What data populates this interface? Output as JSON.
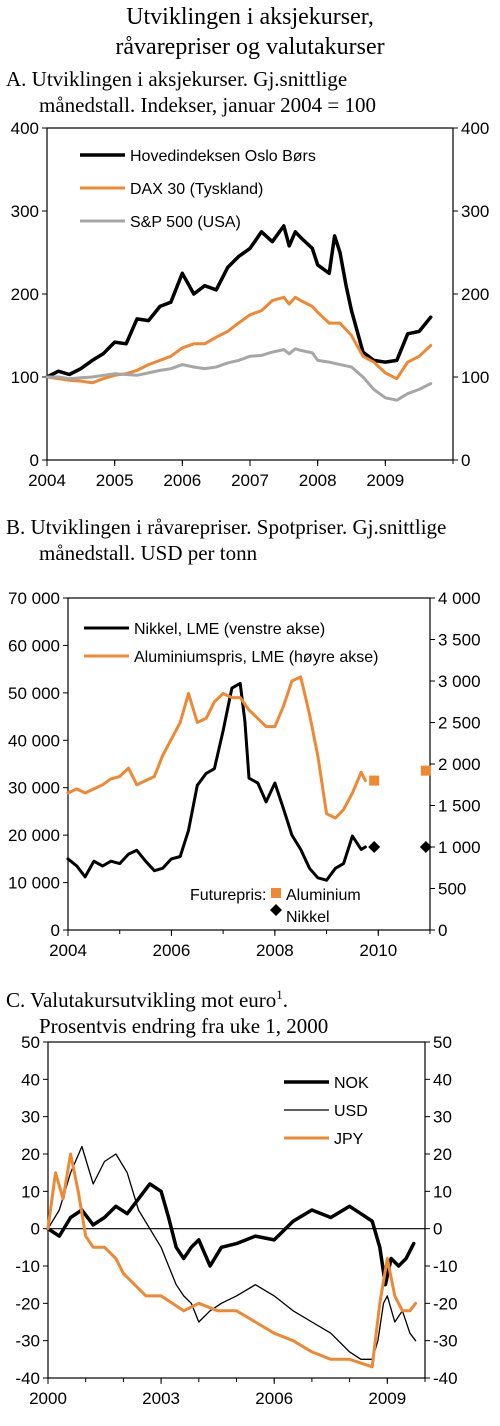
{
  "page": {
    "title_line1": "Utviklingen i aksjekurser,",
    "title_line2": "råvarepriser og valutakurser"
  },
  "chart_data": [
    {
      "type": "line",
      "title": "A. Utviklingen i aksjekurser. Gj.snittlige månedstall. Indekser, januar 2004 = 100",
      "title_line1": "A.  Utviklingen i aksjekurser. Gj.snittlige",
      "title_line2": "månedstall. Indekser, januar 2004 = 100",
      "xlim": [
        2004,
        2010
      ],
      "x_ticks": [
        2004,
        2005,
        2006,
        2007,
        2008,
        2009
      ],
      "ylim_left": [
        0,
        400
      ],
      "ylim_right": [
        0,
        400
      ],
      "y_ticks_left": [
        0,
        100,
        200,
        300,
        400
      ],
      "y_ticks_right": [
        0,
        100,
        200,
        300,
        400
      ],
      "grid": false,
      "legend_placement": "top-left",
      "series": [
        {
          "name": "Hovedindeksen Oslo Børs",
          "color": "#000000",
          "width": 3.5,
          "axis": "left",
          "x": [
            2004.0,
            2004.17,
            2004.33,
            2004.5,
            2004.67,
            2004.83,
            2005.0,
            2005.17,
            2005.33,
            2005.5,
            2005.67,
            2005.83,
            2006.0,
            2006.17,
            2006.33,
            2006.5,
            2006.67,
            2006.83,
            2007.0,
            2007.17,
            2007.33,
            2007.5,
            2007.58,
            2007.67,
            2007.75,
            2007.92,
            2008.0,
            2008.17,
            2008.25,
            2008.33,
            2008.42,
            2008.5,
            2008.67,
            2008.83,
            2009.0,
            2009.17,
            2009.33,
            2009.5,
            2009.67
          ],
          "y": [
            100,
            107,
            103,
            110,
            120,
            128,
            142,
            140,
            170,
            168,
            185,
            190,
            225,
            200,
            210,
            205,
            232,
            245,
            255,
            275,
            263,
            282,
            258,
            275,
            268,
            255,
            235,
            225,
            270,
            250,
            210,
            180,
            130,
            120,
            118,
            120,
            152,
            155,
            172
          ]
        },
        {
          "name": "DAX 30 (Tyskland)",
          "color": "#ee8833",
          "width": 3,
          "axis": "left",
          "x": [
            2004.0,
            2004.17,
            2004.33,
            2004.5,
            2004.67,
            2004.83,
            2005.0,
            2005.17,
            2005.33,
            2005.5,
            2005.67,
            2005.83,
            2006.0,
            2006.17,
            2006.33,
            2006.5,
            2006.67,
            2006.83,
            2007.0,
            2007.17,
            2007.33,
            2007.5,
            2007.58,
            2007.67,
            2007.75,
            2007.92,
            2008.0,
            2008.17,
            2008.33,
            2008.5,
            2008.67,
            2008.83,
            2009.0,
            2009.17,
            2009.33,
            2009.5,
            2009.67
          ],
          "y": [
            100,
            98,
            96,
            95,
            93,
            98,
            102,
            104,
            108,
            115,
            120,
            125,
            135,
            140,
            140,
            148,
            155,
            165,
            175,
            180,
            192,
            196,
            188,
            196,
            192,
            185,
            178,
            165,
            165,
            150,
            125,
            118,
            105,
            98,
            118,
            125,
            138
          ]
        },
        {
          "name": "S&P 500 (USA)",
          "color": "#a6a6a6",
          "width": 3,
          "axis": "left",
          "x": [
            2004.0,
            2004.17,
            2004.33,
            2004.5,
            2004.67,
            2004.83,
            2005.0,
            2005.17,
            2005.33,
            2005.5,
            2005.67,
            2005.83,
            2006.0,
            2006.17,
            2006.33,
            2006.5,
            2006.67,
            2006.83,
            2007.0,
            2007.17,
            2007.33,
            2007.5,
            2007.58,
            2007.67,
            2007.75,
            2007.92,
            2008.0,
            2008.17,
            2008.33,
            2008.5,
            2008.67,
            2008.83,
            2009.0,
            2009.17,
            2009.33,
            2009.5,
            2009.67
          ],
          "y": [
            100,
            100,
            98,
            99,
            100,
            102,
            104,
            103,
            102,
            105,
            108,
            110,
            115,
            112,
            110,
            112,
            117,
            120,
            125,
            126,
            130,
            133,
            128,
            134,
            132,
            129,
            120,
            118,
            115,
            112,
            100,
            85,
            75,
            72,
            80,
            85,
            92
          ]
        }
      ]
    },
    {
      "type": "line",
      "title": "B. Utviklingen i råvarepriser. Spotpriser. Gj.snittlige månedstall. USD per tonn",
      "title_line1": "B.  Utviklingen i råvarepriser. Spotpriser. Gj.snittlige",
      "title_line2": "månedstall. USD per tonn",
      "xlim": [
        2004,
        2011
      ],
      "x_ticks": [
        2004,
        2006,
        2008,
        2010
      ],
      "ylim_left": [
        0,
        70000
      ],
      "ylim_right": [
        0,
        4000
      ],
      "y_ticks_left": [
        0,
        10000,
        20000,
        30000,
        40000,
        50000,
        60000,
        70000
      ],
      "y_ticks_left_labels": [
        "0",
        "10 000",
        "20 000",
        "30 000",
        "40 000",
        "50 000",
        "60 000",
        "70 000"
      ],
      "y_ticks_right": [
        0,
        500,
        1000,
        1500,
        2000,
        2500,
        3000,
        3500,
        4000
      ],
      "y_ticks_right_labels": [
        "0",
        "500",
        "1 000",
        "1 500",
        "2 000",
        "2 500",
        "3 000",
        "3 500",
        "4 000"
      ],
      "grid": false,
      "legend_placement": "top-left",
      "series": [
        {
          "name": "Nikkel, LME (venstre akse)",
          "color": "#000000",
          "width": 3,
          "axis": "left",
          "x": [
            2004.0,
            2004.17,
            2004.33,
            2004.5,
            2004.67,
            2004.83,
            2005.0,
            2005.17,
            2005.33,
            2005.5,
            2005.67,
            2005.83,
            2006.0,
            2006.17,
            2006.33,
            2006.5,
            2006.67,
            2006.83,
            2007.0,
            2007.17,
            2007.33,
            2007.42,
            2007.5,
            2007.67,
            2007.83,
            2008.0,
            2008.17,
            2008.33,
            2008.5,
            2008.67,
            2008.83,
            2009.0,
            2009.17,
            2009.33,
            2009.5,
            2009.67,
            2009.75
          ],
          "y": [
            15000,
            13500,
            11200,
            14500,
            13500,
            14500,
            14000,
            16000,
            16800,
            14500,
            12500,
            13000,
            15000,
            15500,
            21000,
            30500,
            33000,
            34000,
            42000,
            51000,
            52000,
            44000,
            32000,
            31000,
            27000,
            31000,
            25500,
            20000,
            17000,
            13000,
            11000,
            10500,
            13000,
            14000,
            19800,
            17000,
            17500
          ]
        },
        {
          "name": "Aluminiumspris, LME (høyre akse)",
          "color": "#ee8833",
          "width": 3,
          "axis": "right",
          "x": [
            2004.0,
            2004.17,
            2004.33,
            2004.5,
            2004.67,
            2004.83,
            2005.0,
            2005.17,
            2005.33,
            2005.5,
            2005.67,
            2005.83,
            2006.0,
            2006.17,
            2006.33,
            2006.5,
            2006.67,
            2006.83,
            2007.0,
            2007.17,
            2007.33,
            2007.5,
            2007.67,
            2007.83,
            2008.0,
            2008.17,
            2008.33,
            2008.5,
            2008.67,
            2008.83,
            2009.0,
            2009.17,
            2009.33,
            2009.5,
            2009.67,
            2009.75
          ],
          "y": [
            1650,
            1700,
            1650,
            1700,
            1750,
            1820,
            1850,
            1950,
            1750,
            1800,
            1850,
            2100,
            2300,
            2500,
            2850,
            2500,
            2550,
            2750,
            2850,
            2800,
            2800,
            2650,
            2550,
            2450,
            2450,
            2700,
            3000,
            3050,
            2600,
            2100,
            1400,
            1350,
            1450,
            1650,
            1900,
            1800
          ]
        }
      ],
      "futures": {
        "label": "Futurepris:",
        "items": [
          {
            "name": "Aluminium",
            "color": "#ee8833",
            "marker": "square",
            "axis": "right",
            "x": [
              2009.92,
              2010.92
            ],
            "y": [
              1800,
              1920
            ]
          },
          {
            "name": "Nikkel",
            "color": "#000000",
            "marker": "diamond",
            "axis": "left",
            "x": [
              2009.92,
              2010.92
            ],
            "y": [
              17500,
              17500
            ]
          }
        ]
      }
    },
    {
      "type": "line",
      "title": "C. Valutakursutvikling mot euro1. Prosentvis endring fra uke 1, 2000",
      "title_line1": "C.  Valutakursutvikling mot euro",
      "title_sup": "1",
      "title_line1_end": ".",
      "title_line2": "Prosentvis endring fra uke 1, 2000",
      "xlim": [
        2000,
        2010
      ],
      "x_ticks": [
        2000,
        2003,
        2006,
        2009
      ],
      "ylim_left": [
        -40,
        50
      ],
      "ylim_right": [
        -40,
        50
      ],
      "y_ticks_left": [
        -40,
        -30,
        -20,
        -10,
        0,
        10,
        20,
        30,
        40,
        50
      ],
      "y_ticks_right": [
        -40,
        -30,
        -20,
        -10,
        0,
        10,
        20,
        30,
        40,
        50
      ],
      "zero_line": true,
      "grid": false,
      "legend_placement": "top-right",
      "series": [
        {
          "name": "NOK",
          "color": "#000000",
          "width": 3.5,
          "axis": "left",
          "x": [
            2000.0,
            2000.3,
            2000.6,
            2000.9,
            2001.2,
            2001.5,
            2001.8,
            2002.1,
            2002.4,
            2002.7,
            2003.0,
            2003.2,
            2003.4,
            2003.6,
            2003.8,
            2004.0,
            2004.3,
            2004.6,
            2005.0,
            2005.5,
            2006.0,
            2006.5,
            2007.0,
            2007.5,
            2008.0,
            2008.3,
            2008.6,
            2008.8,
            2008.95,
            2009.1,
            2009.3,
            2009.5,
            2009.7
          ],
          "y": [
            0,
            -2,
            3,
            5,
            1,
            3,
            6,
            4,
            8,
            12,
            10,
            3,
            -5,
            -8,
            -5,
            -3,
            -10,
            -5,
            -4,
            -2,
            -3,
            2,
            5,
            3,
            6,
            4,
            2,
            -5,
            -15,
            -8,
            -10,
            -8,
            -4
          ]
        },
        {
          "name": "USD",
          "color": "#000000",
          "width": 1.3,
          "axis": "left",
          "x": [
            2000.0,
            2000.3,
            2000.6,
            2000.9,
            2001.2,
            2001.5,
            2001.8,
            2002.1,
            2002.4,
            2002.7,
            2003.0,
            2003.2,
            2003.4,
            2003.6,
            2003.8,
            2004.0,
            2004.3,
            2004.6,
            2005.0,
            2005.5,
            2006.0,
            2006.5,
            2007.0,
            2007.5,
            2008.0,
            2008.3,
            2008.6,
            2008.75,
            2008.9,
            2009.0,
            2009.2,
            2009.4,
            2009.6,
            2009.75
          ],
          "y": [
            0,
            5,
            15,
            22,
            12,
            18,
            20,
            15,
            5,
            0,
            -5,
            -10,
            -15,
            -18,
            -20,
            -25,
            -22,
            -20,
            -18,
            -15,
            -18,
            -22,
            -25,
            -28,
            -33,
            -35,
            -35,
            -30,
            -20,
            -18,
            -25,
            -22,
            -28,
            -30
          ]
        },
        {
          "name": "JPY",
          "color": "#ee8833",
          "width": 3,
          "axis": "left",
          "x": [
            2000.0,
            2000.2,
            2000.4,
            2000.6,
            2000.8,
            2001.0,
            2001.2,
            2001.5,
            2001.8,
            2002.0,
            2002.3,
            2002.6,
            2003.0,
            2003.3,
            2003.6,
            2004.0,
            2004.5,
            2005.0,
            2005.5,
            2006.0,
            2006.5,
            2007.0,
            2007.5,
            2008.0,
            2008.3,
            2008.6,
            2008.8,
            2009.0,
            2009.2,
            2009.4,
            2009.6,
            2009.75
          ],
          "y": [
            0,
            15,
            8,
            20,
            10,
            -2,
            -5,
            -5,
            -8,
            -12,
            -15,
            -18,
            -18,
            -20,
            -22,
            -20,
            -22,
            -22,
            -25,
            -28,
            -30,
            -33,
            -35,
            -35,
            -36,
            -37,
            -20,
            -8,
            -18,
            -22,
            -22,
            -20
          ]
        }
      ]
    }
  ]
}
